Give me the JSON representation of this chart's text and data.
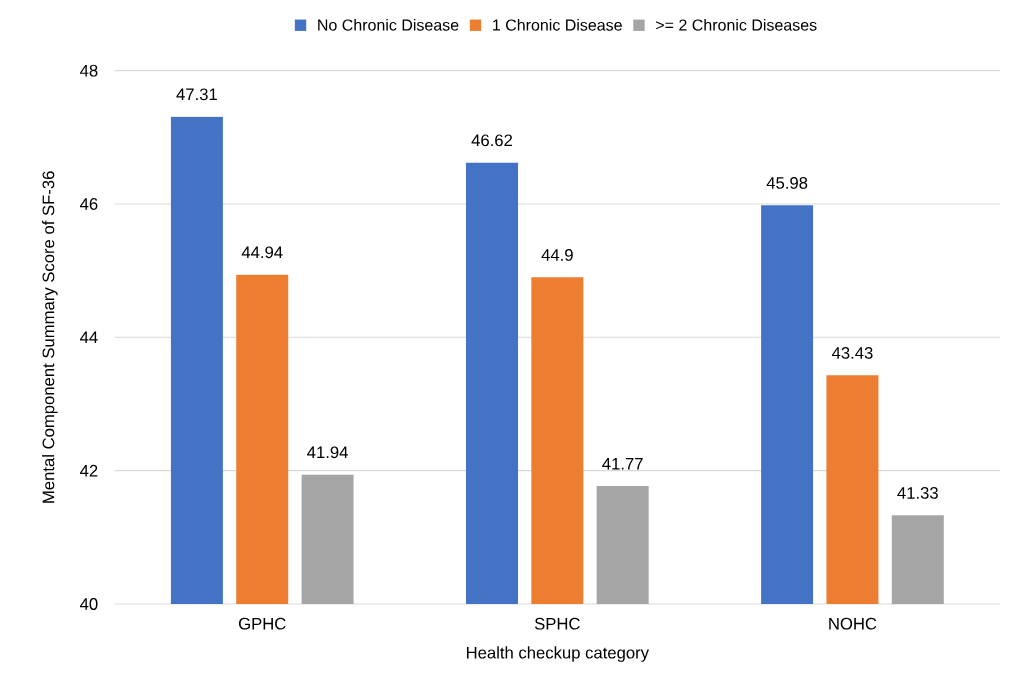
{
  "chart_data": {
    "type": "bar",
    "xlabel": "Health checkup category",
    "ylabel": "Mental Component Summary Score of SF-36",
    "categories": [
      "GPHC",
      "SPHC",
      "NOHC"
    ],
    "series": [
      {
        "name": "No Chronic Disease",
        "color": "#4472c4",
        "values": [
          47.31,
          46.62,
          45.98
        ]
      },
      {
        "name": "1 Chronic Disease",
        "color": "#ed7d31",
        "values": [
          44.94,
          44.9,
          43.43
        ]
      },
      {
        "name": ">= 2 Chronic Diseases",
        "color": "#a5a5a5",
        "values": [
          41.94,
          41.77,
          41.33
        ]
      }
    ],
    "ylim": [
      40,
      48
    ],
    "yticks": [
      40,
      42,
      44,
      46,
      48
    ],
    "grid": "y",
    "legend": "top",
    "data_labels": true
  }
}
